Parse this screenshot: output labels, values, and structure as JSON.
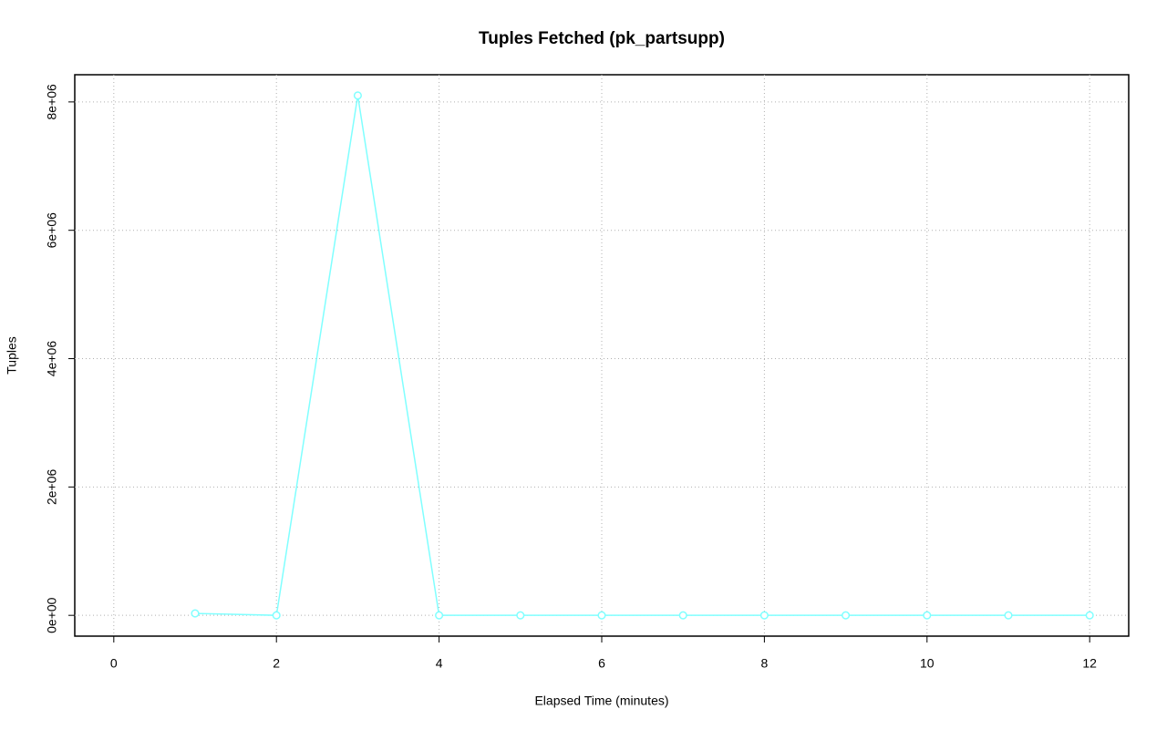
{
  "chart_data": {
    "type": "line",
    "title": "Tuples Fetched (pk_partsupp)",
    "x_label": "Elapsed Time (minutes)",
    "y_label": "Tuples",
    "x": [
      1,
      2,
      3,
      4,
      5,
      6,
      7,
      8,
      9,
      10,
      11,
      12
    ],
    "values": [
      30000,
      0,
      8100000,
      0,
      0,
      0,
      0,
      0,
      0,
      0,
      0,
      0
    ],
    "color": "#80ffff",
    "xlim": [
      -0.48,
      12.48
    ],
    "xticks": [
      0,
      2,
      4,
      6,
      8,
      10,
      12
    ],
    "ylim": [
      -324000,
      8424000
    ],
    "yticks": [
      {
        "value": 0,
        "label": "0e+00"
      },
      {
        "value": 2000000,
        "label": "2e+06"
      },
      {
        "value": 4000000,
        "label": "4e+06"
      },
      {
        "value": 6000000,
        "label": "6e+06"
      },
      {
        "value": 8000000,
        "label": "8e+06"
      }
    ],
    "grid": true
  }
}
